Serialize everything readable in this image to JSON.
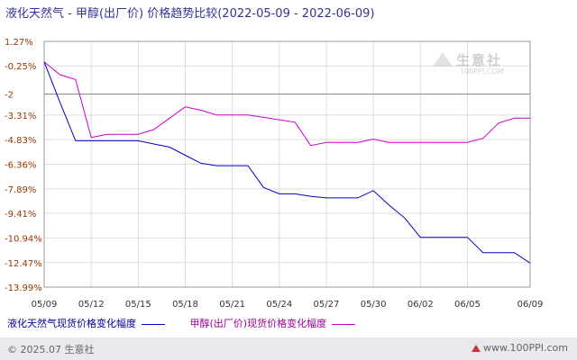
{
  "title": "液化天然气 - 甲醇(出厂价) 价格趋势比较(2022-05-09 - 2022-06-09)",
  "watermark": {
    "name": "生意社",
    "url": "100PPI.COM"
  },
  "footer": {
    "left": "© 2025.07 生意社",
    "right": "www.100PPI.com"
  },
  "colors": {
    "series1": "#0000cc",
    "series2": "#cc00cc",
    "axis_label": "#993300",
    "reference_line": "#888888",
    "grid": "#dddddd"
  },
  "chart_data": {
    "type": "line",
    "title": "液化天然气 - 甲醇(出厂价) 价格趋势比较(2022-05-09 - 2022-06-09)",
    "xlabel": "",
    "ylabel": "",
    "ylim": [
      -13.99,
      1.27
    ],
    "y_ticks": [
      "1.27%",
      "-0.25%",
      "-2",
      "-3.31%",
      "-4.83%",
      "-6.36%",
      "-7.89%",
      "-9.41%",
      "-10.94%",
      "-12.47%",
      "-13.99%"
    ],
    "y_tick_values": [
      1.27,
      -0.25,
      -2,
      -3.31,
      -4.83,
      -6.36,
      -7.89,
      -9.41,
      -10.94,
      -12.47,
      -13.99
    ],
    "x_tick_labels": [
      "05/09",
      "05/12",
      "05/15",
      "05/18",
      "05/21",
      "05/24",
      "05/27",
      "05/30",
      "06/02",
      "06/05",
      "06/09"
    ],
    "x": [
      "05/09",
      "05/10",
      "05/11",
      "05/12",
      "05/13",
      "05/14",
      "05/15",
      "05/16",
      "05/17",
      "05/18",
      "05/19",
      "05/20",
      "05/21",
      "05/22",
      "05/23",
      "05/24",
      "05/25",
      "05/26",
      "05/27",
      "05/28",
      "05/29",
      "05/30",
      "05/31",
      "06/01",
      "06/02",
      "06/03",
      "06/04",
      "06/05",
      "06/06",
      "06/07",
      "06/08",
      "06/09"
    ],
    "reference_value": -2,
    "series": [
      {
        "name": "液化天然气现货价格变化幅度",
        "color": "#0000cc",
        "values": [
          0,
          -2.5,
          -4.9,
          -4.9,
          -4.9,
          -4.9,
          -4.9,
          -5.1,
          -5.3,
          -5.8,
          -6.3,
          -6.45,
          -6.45,
          -6.45,
          -7.8,
          -8.2,
          -8.2,
          -8.35,
          -8.45,
          -8.45,
          -8.45,
          -8.0,
          -8.9,
          -9.7,
          -10.9,
          -10.9,
          -10.9,
          -10.9,
          -11.85,
          -11.85,
          -11.85,
          -12.5
        ]
      },
      {
        "name": "甲醇(出厂价)现货价格变化幅度",
        "color": "#cc00cc",
        "values": [
          0,
          -0.8,
          -1.1,
          -4.7,
          -4.5,
          -4.5,
          -4.5,
          -4.2,
          -3.5,
          -2.8,
          -3.0,
          -3.3,
          -3.3,
          -3.3,
          -3.45,
          -3.6,
          -3.75,
          -5.2,
          -5.0,
          -5.0,
          -5.0,
          -4.8,
          -5.0,
          -5.0,
          -5.0,
          -5.0,
          -5.0,
          -5.0,
          -4.75,
          -3.8,
          -3.5,
          -3.5
        ]
      }
    ]
  }
}
